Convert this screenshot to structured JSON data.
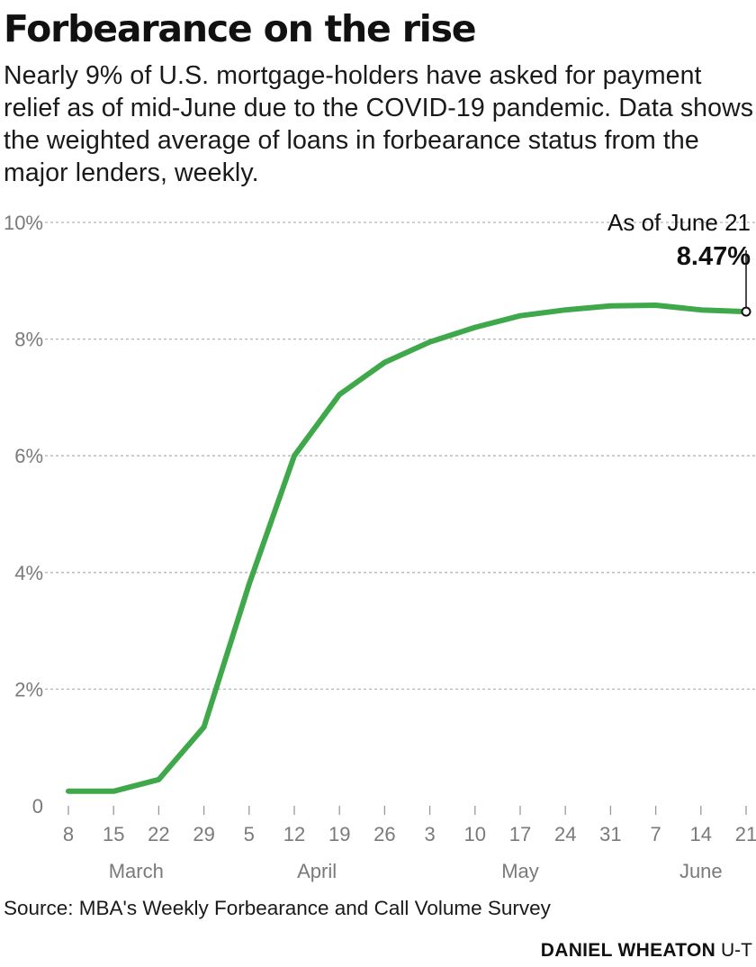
{
  "header": {
    "title": "Forbearance on the rise",
    "subtitle": "Nearly 9% of U.S. mortgage-holders have asked for payment relief as of mid-June due to the COVID-19 pandemic. Data shows the weighted average of loans in forbearance status from the major lenders, weekly."
  },
  "annotation": {
    "label": "As of June 21",
    "value": "8.47%"
  },
  "footer": {
    "source": "Source: MBA's Weekly Forbearance and Call Volume Survey",
    "byline": "DANIEL WHEATON",
    "outlet": "U-T"
  },
  "colors": {
    "line": "#3fa84a",
    "grid": "#b5b5b5",
    "axis_text": "#7a7a7a"
  },
  "chart_data": {
    "type": "line",
    "x": [
      "8",
      "15",
      "22",
      "29",
      "5",
      "12",
      "19",
      "26",
      "3",
      "10",
      "17",
      "24",
      "31",
      "7",
      "14",
      "21"
    ],
    "months": [
      {
        "label": "March",
        "from": 0,
        "to": 3
      },
      {
        "label": "April",
        "from": 4,
        "to": 7
      },
      {
        "label": "May",
        "from": 8,
        "to": 12
      },
      {
        "label": "June",
        "from": 13,
        "to": 15
      }
    ],
    "series": [
      {
        "values": [
          0.25,
          0.25,
          0.45,
          1.35,
          3.8,
          6.0,
          7.05,
          7.6,
          7.95,
          8.2,
          8.4,
          8.5,
          8.57,
          8.58,
          8.5,
          8.47
        ]
      }
    ],
    "yticks": [
      {
        "value": 10,
        "label": "10%"
      },
      {
        "value": 8,
        "label": "8%"
      },
      {
        "value": 6,
        "label": "6%"
      },
      {
        "value": 4,
        "label": "4%"
      },
      {
        "value": 2,
        "label": "2%"
      },
      {
        "value": 0,
        "label": "0"
      }
    ],
    "ylim": [
      0,
      10
    ],
    "grid": true
  }
}
